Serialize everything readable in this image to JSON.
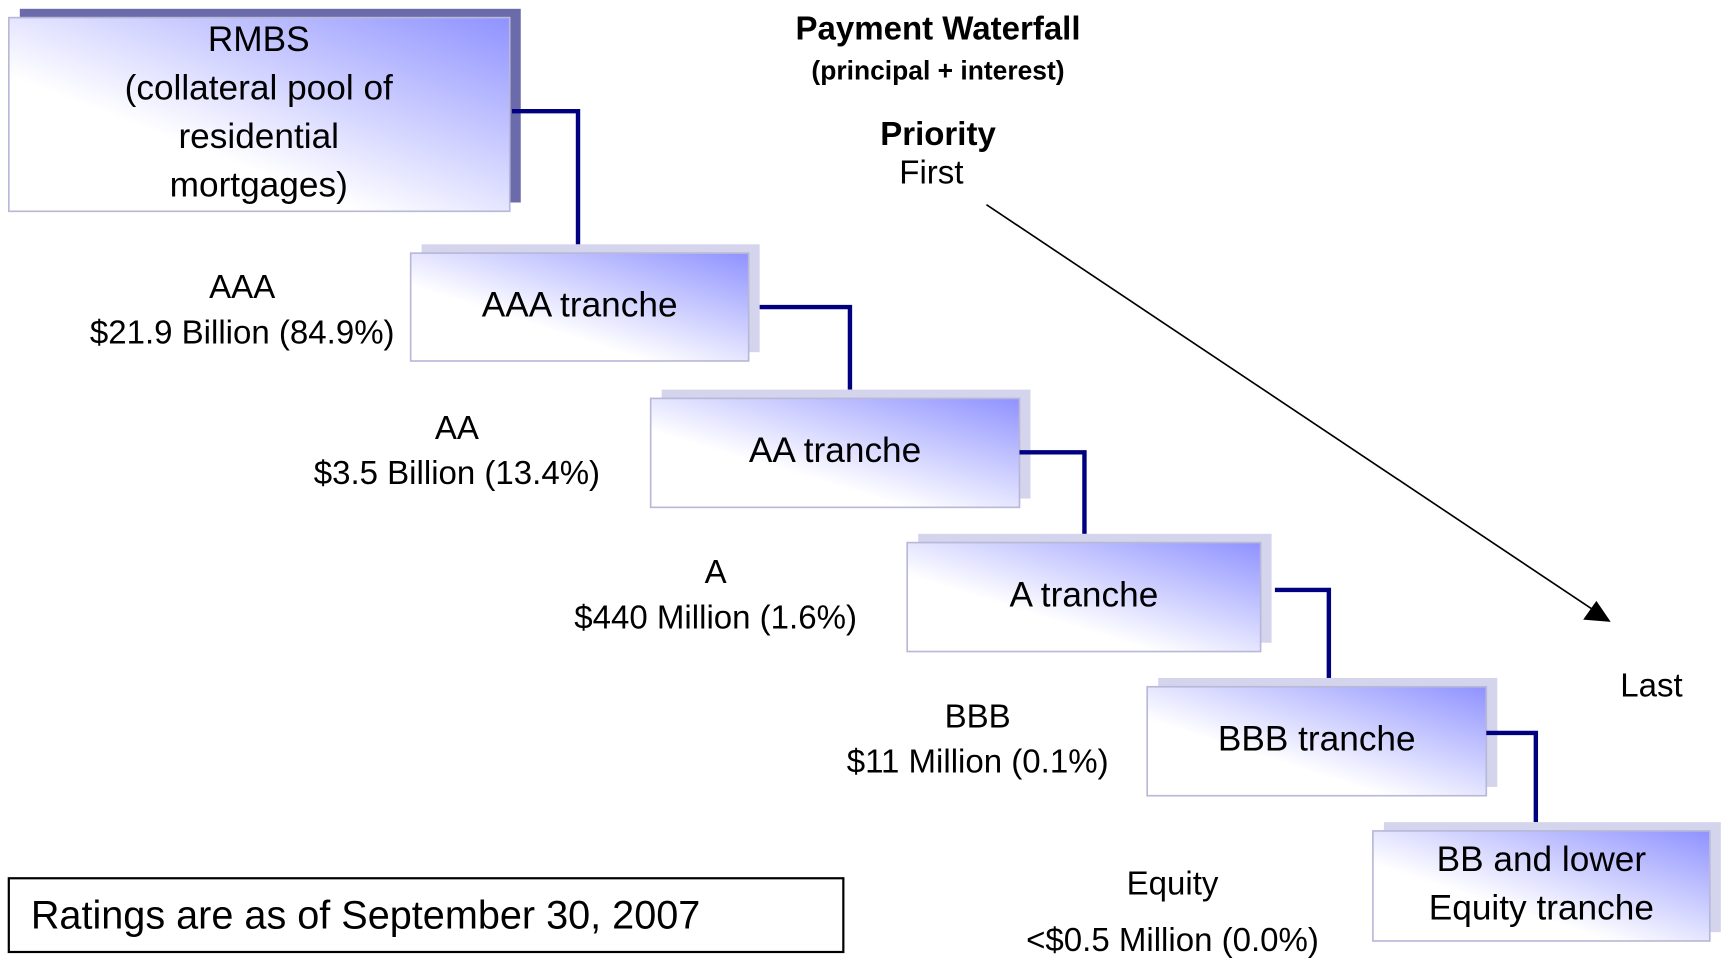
{
  "title": "Payment Waterfall",
  "subtitle": "(principal + interest)",
  "priority": {
    "label": "Priority",
    "first": "First",
    "last": "Last"
  },
  "collateral": {
    "lines": [
      "RMBS",
      "(collateral pool of",
      "residential",
      "mortgages)"
    ]
  },
  "tranches": [
    {
      "label": [
        "AAA tranche"
      ],
      "rating": "AAA",
      "amount": "$21.9 Billion (84.9%)"
    },
    {
      "label": [
        "AA tranche"
      ],
      "rating": "AA",
      "amount": "$3.5 Billion (13.4%)"
    },
    {
      "label": [
        "A tranche"
      ],
      "rating": "A",
      "amount": "$440 Million (1.6%)"
    },
    {
      "label": [
        "BBB tranche"
      ],
      "rating": "BBB",
      "amount": "$11 Million (0.1%)"
    },
    {
      "label": [
        "BB and lower",
        "Equity tranche"
      ],
      "rating": "Equity",
      "amount": "<$0.5 Million (0.0%)"
    }
  ],
  "note": "Ratings are as of September 30, 2007"
}
